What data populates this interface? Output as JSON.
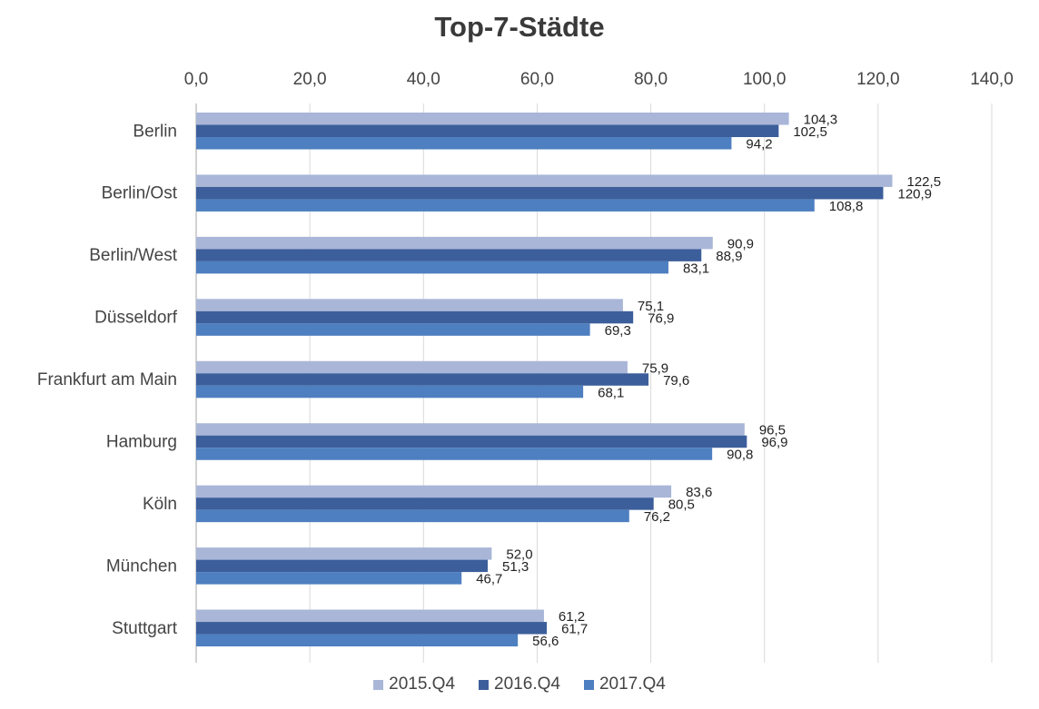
{
  "chart_data": {
    "type": "bar",
    "orientation": "horizontal",
    "title": "Top-7-Städte",
    "xlabel": "",
    "ylabel": "",
    "xlim": [
      0,
      140
    ],
    "ticks": [
      "0,0",
      "20,0",
      "40,0",
      "60,0",
      "80,0",
      "100,0",
      "120,0",
      "140,0"
    ],
    "tick_values": [
      0,
      20,
      40,
      60,
      80,
      100,
      120,
      140
    ],
    "grid": true,
    "legend_position": "bottom",
    "categories": [
      "Berlin",
      "Berlin/Ost",
      "Berlin/West",
      "Düsseldorf",
      "Frankfurt am Main",
      "Hamburg",
      "Köln",
      "München",
      "Stuttgart"
    ],
    "series": [
      {
        "name": "2015.Q4",
        "color": "#a9b6d8",
        "values": [
          104.3,
          122.5,
          90.9,
          75.1,
          75.9,
          96.5,
          83.6,
          52.0,
          61.2
        ],
        "labels": [
          "104,3",
          "122,5",
          "90,9",
          "75,1",
          "75,9",
          "96,5",
          "83,6",
          "52,0",
          "61,2"
        ]
      },
      {
        "name": "2016.Q4",
        "color": "#3c5f9b",
        "values": [
          102.5,
          120.9,
          88.9,
          76.9,
          79.6,
          96.9,
          80.5,
          51.3,
          61.7
        ],
        "labels": [
          "102,5",
          "120,9",
          "88,9",
          "76,9",
          "79,6",
          "96,9",
          "80,5",
          "51,3",
          "61,7"
        ]
      },
      {
        "name": "2017.Q4",
        "color": "#4e7fc0",
        "values": [
          94.2,
          108.8,
          83.1,
          69.3,
          68.1,
          90.8,
          76.2,
          46.7,
          56.6
        ],
        "labels": [
          "94,2",
          "108,8",
          "83,1",
          "69,3",
          "68,1",
          "90,8",
          "76,2",
          "46,7",
          "56,6"
        ]
      }
    ]
  }
}
